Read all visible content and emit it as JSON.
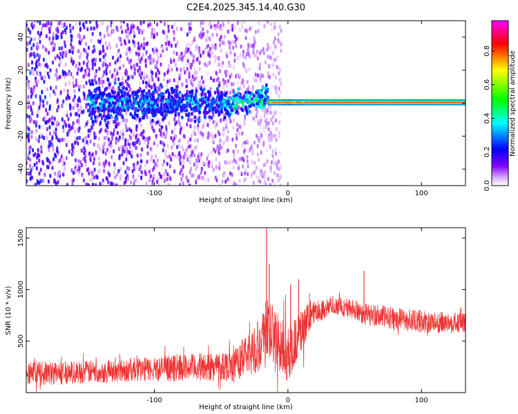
{
  "title": "C2E4.2025.345.14.40.G30",
  "chart_data": [
    {
      "type": "heatmap",
      "xlabel": "Height of straight line (km)",
      "ylabel": "Frequency (Hz)",
      "xlim": [
        -196,
        133
      ],
      "ylim": [
        -50,
        50
      ],
      "xticks": [
        -100,
        0,
        100
      ],
      "xtick_labels": [
        "-100",
        "0",
        "100"
      ],
      "yticks": [
        -40,
        -20,
        0,
        20,
        40
      ],
      "ytick_labels": [
        "-40",
        "-20",
        "0",
        "20",
        "40"
      ],
      "colorbar": {
        "label": "Normalized spectral amplitude",
        "range": [
          0,
          0.98
        ],
        "ticks": [
          0.0,
          0.2,
          0.4,
          0.6,
          0.8
        ],
        "tick_labels": [
          "0.0",
          "0.2",
          "0.4",
          "0.6",
          "0.8"
        ],
        "colormap": [
          "#ffffff",
          "#8000ff",
          "#0000ff",
          "#00ffff",
          "#00ff00",
          "#ffff00",
          "#ff0000",
          "#ff00ff"
        ]
      },
      "features": {
        "noisy_region_x": [
          -196,
          -15
        ],
        "coherent_line_x": [
          -15,
          133
        ],
        "coherent_line_frequency": 0.5,
        "peak_amplitude": 0.95
      }
    },
    {
      "type": "line",
      "xlabel": "Height of straight line (km)",
      "ylabel": "SNR (10 * v/v)",
      "xlim": [
        -196,
        133
      ],
      "ylim": [
        0,
        1600
      ],
      "xticks": [
        -100,
        0,
        100
      ],
      "xtick_labels": [
        "-100",
        "0",
        "100"
      ],
      "yticks": [
        500,
        1000,
        1500
      ],
      "ytick_labels": [
        "500",
        "1000",
        "1500"
      ],
      "series": [
        {
          "name": "SNR",
          "color": "#ee3333",
          "envelope_x": [
            -196,
            -150,
            -100,
            -60,
            -40,
            -25,
            -15,
            0,
            10,
            20,
            35,
            45,
            60,
            80,
            100,
            133
          ],
          "envelope_mean": [
            180,
            200,
            230,
            250,
            270,
            420,
            600,
            360,
            600,
            780,
            850,
            820,
            760,
            720,
            690,
            670
          ],
          "envelope_spread": [
            120,
            110,
            120,
            140,
            160,
            240,
            360,
            260,
            220,
            110,
            90,
            100,
            110,
            110,
            110,
            100
          ],
          "spikes": [
            {
              "x": -16,
              "y": 1600
            },
            {
              "x": -14,
              "y": 1250
            },
            {
              "x": 57,
              "y": 1180
            },
            {
              "x": 8,
              "y": 1100
            },
            {
              "x": 2,
              "y": 1050
            }
          ]
        }
      ]
    }
  ]
}
